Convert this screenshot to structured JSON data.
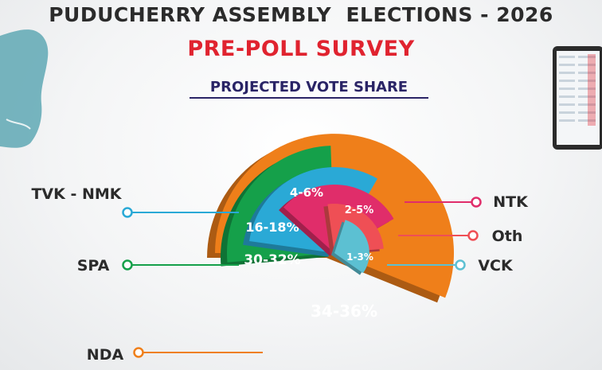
{
  "header": {
    "title": "PUDUCHERRY ASSEMBLY  ELECTIONS - 2026",
    "subtitle": "PRE-POLL SURVEY",
    "section_title": "PROJECTED VOTE SHARE"
  },
  "chart_data": {
    "type": "pie",
    "title": "PROJECTED VOTE SHARE",
    "slices": [
      {
        "party": "NDA",
        "label": "34-36%",
        "low": 34,
        "high": 36,
        "color": "#ef7f1a"
      },
      {
        "party": "SPA",
        "label": "30-32%",
        "low": 30,
        "high": 32,
        "color": "#15a04a"
      },
      {
        "party": "TVK - NMK",
        "label": "16-18%",
        "low": 16,
        "high": 18,
        "color": "#2aa9d6"
      },
      {
        "party": "NTK",
        "label": "4-6%",
        "low": 4,
        "high": 6,
        "color": "#e02d6a"
      },
      {
        "party": "Oth",
        "label": "2-5%",
        "low": 2,
        "high": 5,
        "color": "#ef4f55"
      },
      {
        "party": "VCK",
        "label": "1-3%",
        "low": 1,
        "high": 3,
        "color": "#5cc0d2"
      }
    ]
  },
  "colors": {
    "title": "#2b2b2b",
    "subtitle": "#e0232f",
    "section_title": "#2a2466"
  }
}
